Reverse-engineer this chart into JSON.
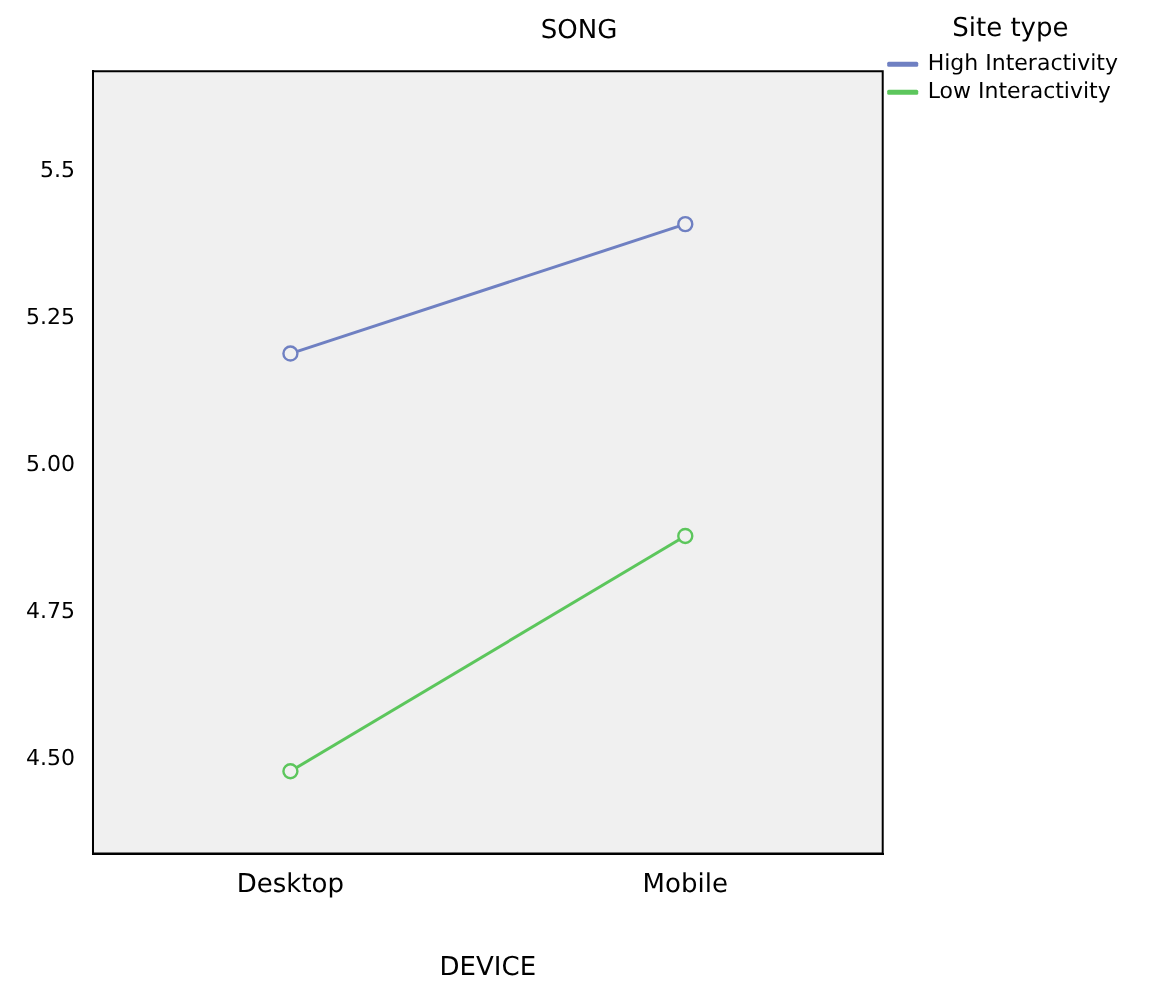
{
  "chart_data": {
    "type": "line",
    "title": "SONG",
    "xlabel": "DEVICE",
    "legend_title": "Site type",
    "categories": [
      "Desktop",
      "Mobile"
    ],
    "series": [
      {
        "name": "High Interactivity",
        "color": "#6f80c2",
        "values": [
          5.19,
          5.41
        ]
      },
      {
        "name": "Low Interactivity",
        "color": "#5cc65c",
        "values": [
          4.48,
          4.88
        ]
      }
    ],
    "ylim": [
      4.34,
      5.67
    ],
    "yticks": [
      {
        "value": 4.5,
        "label": "4.50"
      },
      {
        "value": 4.75,
        "label": "4.75"
      },
      {
        "value": 5,
        "label": "5.00"
      },
      {
        "value": 5.25,
        "label": "5.25"
      },
      {
        "value": 5.5,
        "label": "5.5"
      }
    ],
    "grid": false,
    "legend": "top right",
    "marker": "circle",
    "line_style": "solid"
  }
}
